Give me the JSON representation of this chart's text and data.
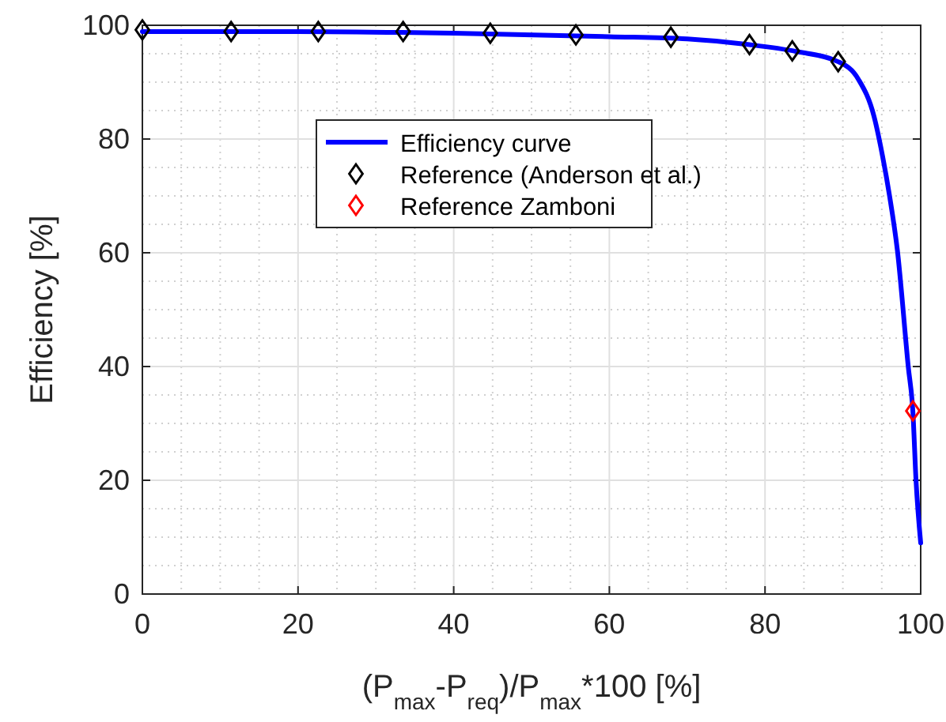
{
  "chart_data": {
    "type": "line",
    "xlabel": "(P$_{max}$-P$_{req}$)/P$_{max}$*100 [%]",
    "ylabel": "Efficiency [%]",
    "xlim": [
      0,
      100
    ],
    "ylim": [
      0,
      100
    ],
    "xticks": [
      0,
      20,
      40,
      60,
      80,
      100
    ],
    "yticks": [
      0,
      20,
      40,
      60,
      80,
      100
    ],
    "grid": true,
    "legend": "top",
    "series": [
      {
        "name": "Efficiency curve",
        "color": "#0000ff",
        "marker": "none",
        "line_style": "solid",
        "x": [
          0,
          20,
          40,
          60,
          70,
          78,
          84,
          89.4,
          92,
          94,
          95.1,
          96,
          97,
          98.4,
          99,
          99.4,
          100
        ],
        "values": [
          98.9,
          98.9,
          98.6,
          98,
          97.6,
          96.6,
          95.4,
          93.6,
          90.5,
          84,
          77,
          70,
          60.5,
          40,
          32,
          20,
          9
        ]
      },
      {
        "name": "Reference (Anderson et al.)",
        "type": "scatter",
        "color": "#000000",
        "marker": "diamond",
        "x": [
          0,
          11.4,
          22.6,
          33.5,
          44.7,
          55.7,
          67.9,
          78,
          83.5,
          89.4
        ],
        "values": [
          99.2,
          98.9,
          98.9,
          98.9,
          98.6,
          98.3,
          97.9,
          96.6,
          95.5,
          93.6
        ]
      },
      {
        "name": "Reference Zamboni",
        "type": "scatter",
        "color": "#ff0000",
        "marker": "diamond",
        "x": [
          99
        ],
        "values": [
          32.2
        ]
      }
    ]
  }
}
